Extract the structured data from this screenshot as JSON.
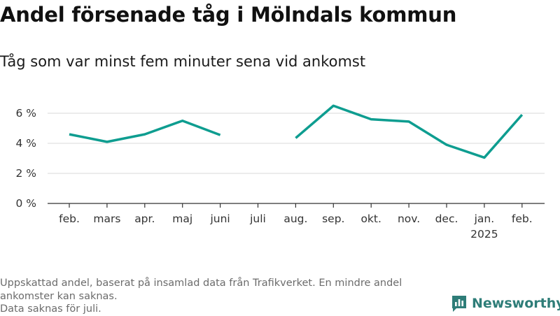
{
  "title": "Andel försenade tåg i Mölndals kommun",
  "subtitle": "Tåg som var minst fem minuter sena vid ankomst",
  "footer": {
    "line1": "Uppskattad andel, baserat på insamlad data från Trafikverket. En mindre andel",
    "line2": "ankomster kan saknas.",
    "line3": "Data saknas för juli."
  },
  "logo": {
    "text": "Newsworthy",
    "icon": "bar-chart-icon",
    "color": "#2e7d78"
  },
  "chart_data": {
    "type": "line",
    "categories": [
      "feb.",
      "mars",
      "apr.",
      "maj",
      "juni",
      "juli",
      "aug.",
      "sep.",
      "okt.",
      "nov.",
      "dec.",
      "jan.",
      "feb."
    ],
    "category_sublabels": [
      "",
      "",
      "",
      "",
      "",
      "",
      "",
      "",
      "",
      "",
      "",
      "2025",
      ""
    ],
    "series": [
      {
        "values": [
          4.6,
          4.1,
          4.6,
          5.5,
          4.55,
          null,
          4.35,
          6.5,
          5.6,
          5.45,
          3.9,
          3.05,
          5.9
        ]
      }
    ],
    "yticks": [
      0,
      2,
      4,
      6
    ],
    "ytick_labels": [
      "0 %",
      "2 %",
      "4 %",
      "6 %"
    ],
    "ylim": [
      0,
      6.8
    ],
    "grid": true,
    "line_color": "#0e9d90",
    "xlabel": "",
    "ylabel": ""
  }
}
